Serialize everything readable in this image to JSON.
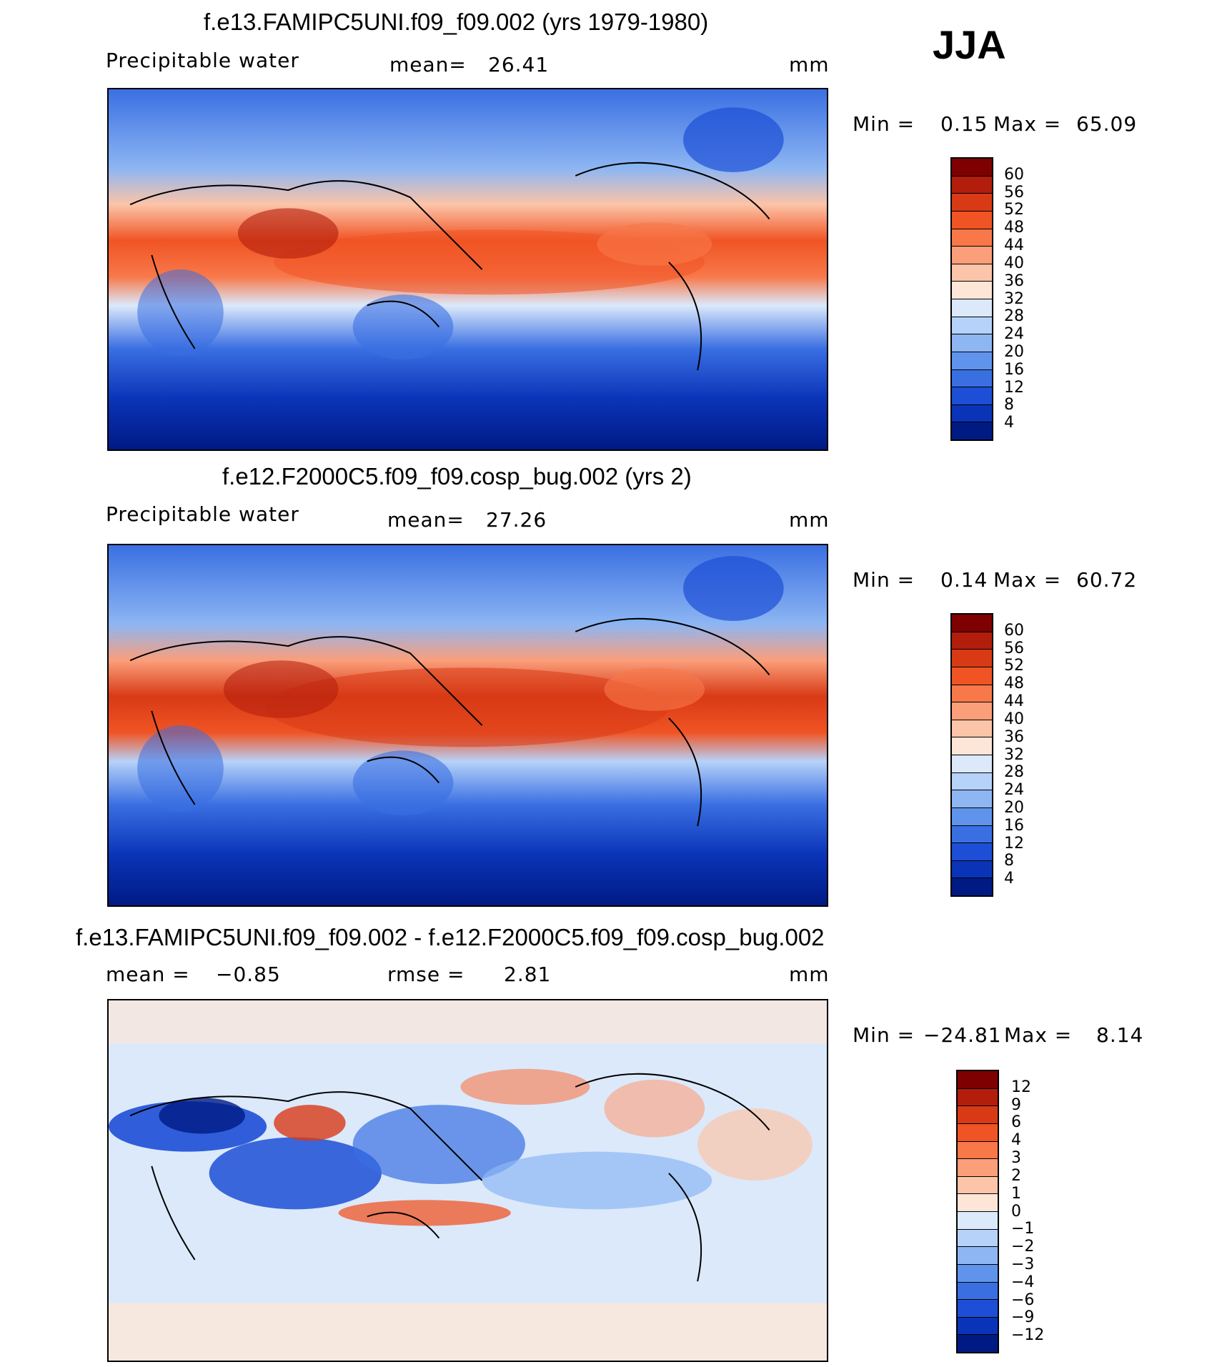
{
  "season": "JJA",
  "units": "mm",
  "panels": [
    {
      "title": "f.e13.FAMIPC5UNI.f09_f09.002 (yrs 1979-1980)",
      "variable": "Precipitable water",
      "mean_label": "mean=",
      "mean_value": "26.41",
      "units": "mm",
      "min_label": "Min =",
      "min_value": "0.15",
      "max_label": "Max =",
      "max_value": "65.09",
      "levels": [
        "60",
        "56",
        "52",
        "48",
        "44",
        "40",
        "36",
        "32",
        "28",
        "24",
        "20",
        "16",
        "12",
        "8",
        "4"
      ],
      "colors": [
        "#7f0000",
        "#b31d0c",
        "#d83a16",
        "#f05424",
        "#f8784a",
        "#fb9e7a",
        "#fcc4a8",
        "#fde6d8",
        "#dbe9fb",
        "#b6d2f8",
        "#8db6f3",
        "#5f93ec",
        "#3a6fe2",
        "#1d4fd6",
        "#0a34b8",
        "#001a84"
      ]
    },
    {
      "title": "f.e12.F2000C5.f09_f09.cosp_bug.002 (yrs 2)",
      "variable": "Precipitable water",
      "mean_label": "mean=",
      "mean_value": "27.26",
      "units": "mm",
      "min_label": "Min =",
      "min_value": "0.14",
      "max_label": "Max =",
      "max_value": "60.72",
      "levels": [
        "60",
        "56",
        "52",
        "48",
        "44",
        "40",
        "36",
        "32",
        "28",
        "24",
        "20",
        "16",
        "12",
        "8",
        "4"
      ],
      "colors": [
        "#7f0000",
        "#b31d0c",
        "#d83a16",
        "#f05424",
        "#f8784a",
        "#fb9e7a",
        "#fcc4a8",
        "#fde6d8",
        "#dbe9fb",
        "#b6d2f8",
        "#8db6f3",
        "#5f93ec",
        "#3a6fe2",
        "#1d4fd6",
        "#0a34b8",
        "#001a84"
      ]
    },
    {
      "title": "f.e13.FAMIPC5UNI.f09_f09.002 - f.e12.F2000C5.f09_f09.cosp_bug.002",
      "variable": "",
      "mean_label": "mean =",
      "mean_value": "−0.85",
      "rmse_label": "rmse =",
      "rmse_value": "2.81",
      "units": "mm",
      "min_label": "Min =",
      "min_value": "−24.81",
      "max_label": "Max =",
      "max_value": "8.14",
      "levels": [
        "12",
        "9",
        "6",
        "4",
        "3",
        "2",
        "1",
        "0",
        "−1",
        "−2",
        "−3",
        "−4",
        "−6",
        "−9",
        "−12"
      ],
      "colors": [
        "#7f0000",
        "#b31d0c",
        "#d83a16",
        "#f05424",
        "#f8784a",
        "#fb9e7a",
        "#fcc4a8",
        "#fde6d8",
        "#dbe9fb",
        "#b6d2f8",
        "#8db6f3",
        "#5f93ec",
        "#3a6fe2",
        "#1d4fd6",
        "#0a34b8",
        "#001a84"
      ]
    }
  ]
}
